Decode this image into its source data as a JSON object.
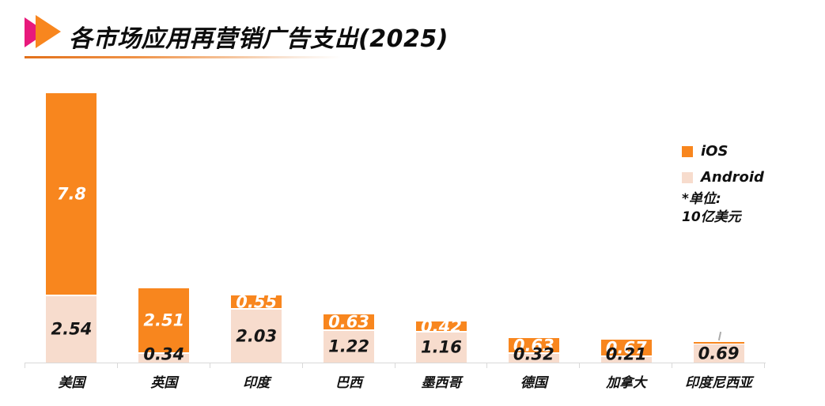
{
  "header": {
    "title": "各市场应用再营销广告支出(2025)",
    "logo_colors": {
      "magenta": "#e8197c",
      "orange": "#f8861e"
    }
  },
  "legend": {
    "position": "right",
    "items": [
      {
        "label": "iOS",
        "color": "#f8861e"
      },
      {
        "label": "Android",
        "color": "#f7dccd"
      }
    ]
  },
  "notes": {
    "line1": "*单位:",
    "line2": "10亿美元"
  },
  "chart_data": {
    "type": "bar",
    "stacked": true,
    "title": "各市场应用再营销广告支出(2025)",
    "unit_note": "*单位: 10亿美元",
    "categories": [
      "美国",
      "英国",
      "印度",
      "巴西",
      "墨西哥",
      "德国",
      "加拿大",
      "印度尼西亚"
    ],
    "series": [
      {
        "name": "iOS",
        "color": "#f8861e",
        "label_color": "#ffffff",
        "values": [
          7.8,
          2.51,
          0.55,
          0.63,
          0.42,
          0.63,
          0.67,
          0.1
        ],
        "labels": [
          "7.8",
          "2.51",
          "0.55",
          "0.63",
          "0.42",
          "0.63",
          "0.67",
          ""
        ]
      },
      {
        "name": "Android",
        "color": "#f7dccd",
        "label_color": "#161616",
        "values": [
          2.54,
          0.34,
          2.03,
          1.22,
          1.16,
          0.32,
          0.21,
          0.69
        ],
        "labels": [
          "2.54",
          "0.34",
          "2.03",
          "1.22",
          "1.16",
          "0.32",
          "0.21",
          "0.69"
        ]
      }
    ],
    "ylim": [
      0,
      10.5
    ],
    "grid": false,
    "legend_position": "right",
    "axis_color": "#d9d9d9",
    "annotations": [
      {
        "type": "leader-line",
        "category": "印度尼西亚",
        "target": "tiny iOS segment, no value label shown"
      }
    ]
  }
}
